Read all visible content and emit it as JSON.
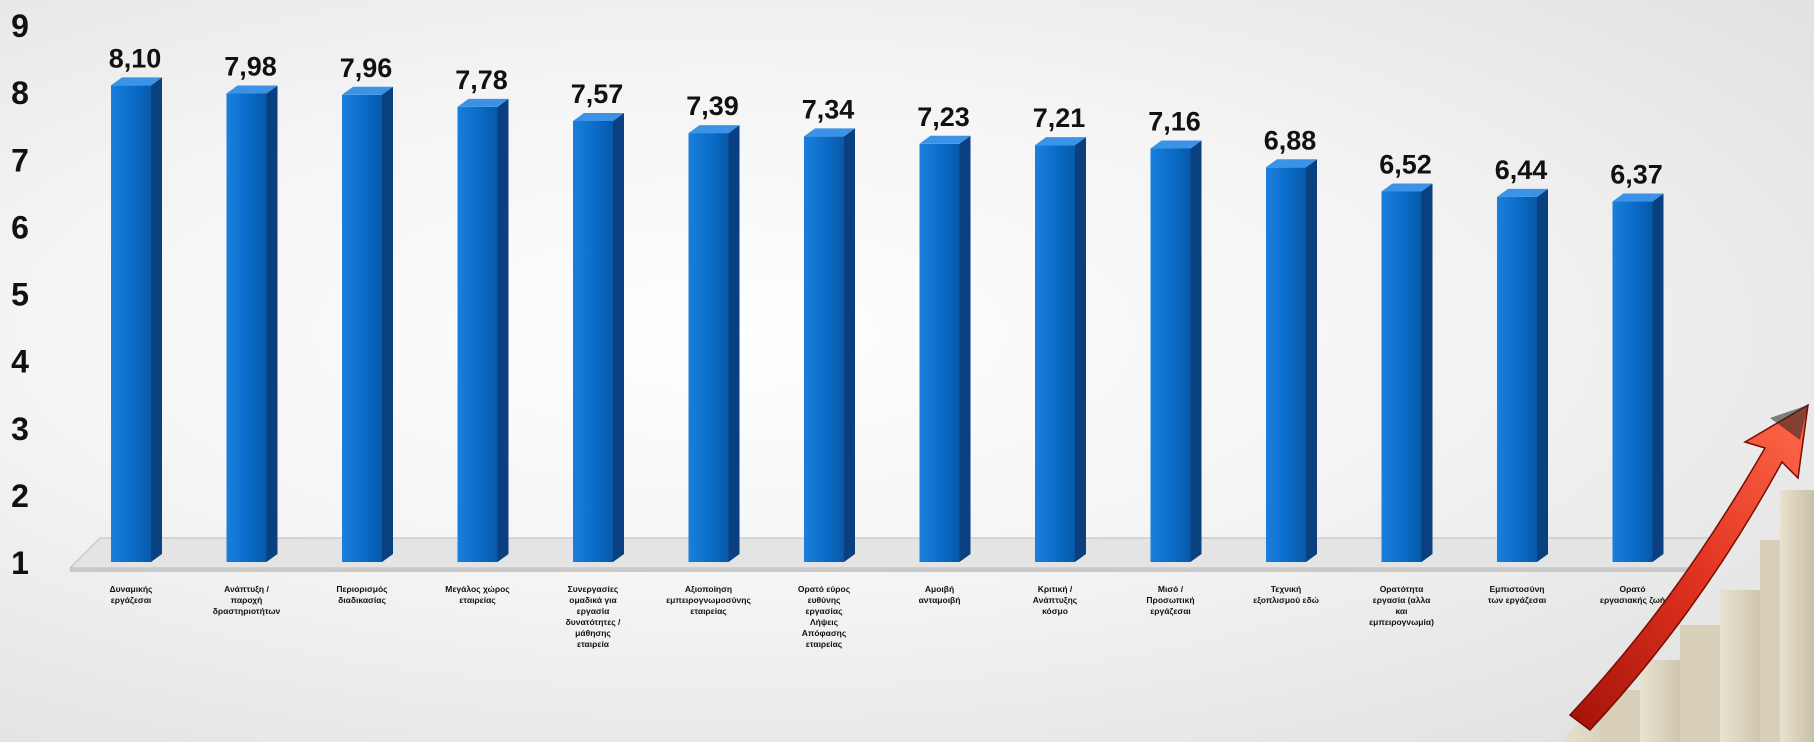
{
  "chart_data": {
    "type": "bar",
    "title": "",
    "xlabel": "",
    "ylabel": "",
    "ylim": [
      1,
      9
    ],
    "yticks": [
      "1",
      "2",
      "3",
      "4",
      "5",
      "6",
      "7",
      "8",
      "9"
    ],
    "grid": false,
    "legend": "none",
    "categories": [
      "Δυναμικής εργάζεσαι",
      "Ανάπτυξη / παροχή δραστηριοτήτων",
      "Περιορισμός διαδικασίας",
      "Μεγάλος χώρος εταιρείας",
      "Συνεργασίες ομαδικά για εργασία δυνατότητες / μάθησης εταιρεία",
      "Αξιοποίηση εμπειρογνωμοσύνης εταιρείας",
      "Ορατό εύρος ευθύνης εργασίας Λήψεις Απόφασης εταιρείας",
      "Αμοιβή ανταμοιβή",
      "Κριτική / Ανάπτυξης κόσμο",
      "Μισό / Προσωπική εργάζεσαι",
      "Τεχνική εξοπλισμού εδώ",
      "Ορατότητα εργασία (αλλα και εμπειρογνωμία)",
      "Εμπιστοσύνη των εργάζεσαι",
      "Ορατό εργασιακής ζωή"
    ],
    "values": [
      8.1,
      7.98,
      7.96,
      7.78,
      7.57,
      7.39,
      7.34,
      7.23,
      7.21,
      7.16,
      6.88,
      6.52,
      6.44,
      6.37
    ],
    "data_labels": [
      "8,10",
      "7,98",
      "7,96",
      "7,78",
      "7,57",
      "7,39",
      "7,34",
      "7,23",
      "7,21",
      "7,16",
      "6,88",
      "6,52",
      "6,44",
      "6,37"
    ],
    "colors": {
      "bar_front": "#0a6cc8",
      "bar_side": "#0a3f80",
      "bar_top": "#3a93e6",
      "floor": "#e4e4e4",
      "text": "#111111",
      "arrow": "#d42a1a"
    }
  },
  "decoration": {
    "icon": "rising-arrow-stairs-icon"
  }
}
